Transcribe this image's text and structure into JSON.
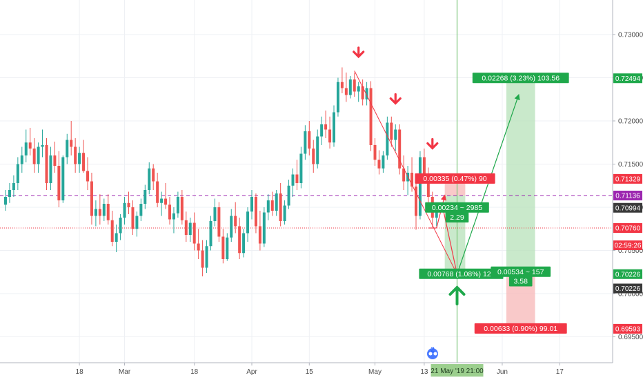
{
  "chart_data": {
    "type": "candlestick",
    "ylim": [
      0.692,
      0.734
    ],
    "price_ticks": [
      "0.73000",
      "0.72500",
      "0.72000",
      "0.71500",
      "0.71000",
      "0.70500",
      "0.70000",
      "0.69500"
    ],
    "x_ticks": [
      {
        "label": "18",
        "day": 18
      },
      {
        "label": "Mar",
        "day": 29
      },
      {
        "label": "18",
        "day": 46
      },
      {
        "label": "Apr",
        "day": 60
      },
      {
        "label": "15",
        "day": 74
      },
      {
        "label": "May",
        "day": 90
      },
      {
        "label": "13",
        "day": 102
      },
      {
        "label": "Jun",
        "day": 121
      },
      {
        "label": "17",
        "day": 135
      }
    ],
    "cursor_date_label": "21 May '19   21:00",
    "cursor_day": 110,
    "watermark_text": "2",
    "price_tags": [
      {
        "text": "0.72494",
        "price": 0.72494,
        "color": "#1fa84b"
      },
      {
        "text": "0.71329",
        "price": 0.71329,
        "color": "#f23645"
      },
      {
        "text": "0.71136",
        "price": 0.71136,
        "color": "#9c27b0"
      },
      {
        "text": "0.70994",
        "price": 0.70994,
        "color": "#3a3a3a"
      },
      {
        "text": "0.70760",
        "price": 0.7076,
        "color": "#f23645"
      },
      {
        "text": "02:59:26",
        "price": 0.7056,
        "color": "#f23645"
      },
      {
        "text": "0.70226",
        "price": 0.70226,
        "color": "#1fa84b"
      },
      {
        "text": "0.70226",
        "price": 0.7006,
        "color": "#3a3a3a"
      },
      {
        "text": "0.69593",
        "price": 0.69593,
        "color": "#f23645"
      }
    ],
    "horizontal_lines": [
      {
        "price": 0.71136,
        "color": "#9c27b0",
        "style": "dashed"
      },
      {
        "price": 0.7076,
        "color": "#f23645",
        "style": "dotted"
      }
    ],
    "candles": [
      [
        0,
        0.7103,
        0.712,
        0.7096,
        0.7112
      ],
      [
        1,
        0.7112,
        0.7128,
        0.7105,
        0.712
      ],
      [
        2,
        0.712,
        0.7137,
        0.7112,
        0.7128
      ],
      [
        3,
        0.7128,
        0.7158,
        0.712,
        0.715
      ],
      [
        4,
        0.715,
        0.717,
        0.714,
        0.716
      ],
      [
        5,
        0.716,
        0.719,
        0.7152,
        0.7175
      ],
      [
        6,
        0.7175,
        0.7192,
        0.716,
        0.7168
      ],
      [
        7,
        0.7168,
        0.718,
        0.714,
        0.715
      ],
      [
        8,
        0.715,
        0.7175,
        0.714,
        0.717
      ],
      [
        9,
        0.717,
        0.719,
        0.7158,
        0.7172
      ],
      [
        10,
        0.7172,
        0.718,
        0.712,
        0.7128
      ],
      [
        11,
        0.7128,
        0.717,
        0.712,
        0.716
      ],
      [
        12,
        0.716,
        0.7176,
        0.714,
        0.7148
      ],
      [
        13,
        0.7148,
        0.7165,
        0.71,
        0.7108
      ],
      [
        14,
        0.7108,
        0.716,
        0.7105,
        0.7158
      ],
      [
        15,
        0.7158,
        0.7185,
        0.715,
        0.7178
      ],
      [
        16,
        0.7178,
        0.72,
        0.716,
        0.717
      ],
      [
        17,
        0.717,
        0.718,
        0.714,
        0.715
      ],
      [
        18,
        0.715,
        0.717,
        0.714,
        0.7163
      ],
      [
        19,
        0.7163,
        0.7178,
        0.714,
        0.7142
      ],
      [
        20,
        0.7142,
        0.7158,
        0.712,
        0.713
      ],
      [
        21,
        0.713,
        0.714,
        0.708,
        0.709
      ],
      [
        22,
        0.709,
        0.7108,
        0.7078,
        0.7098
      ],
      [
        23,
        0.7098,
        0.7115,
        0.708,
        0.709
      ],
      [
        24,
        0.709,
        0.711,
        0.7084,
        0.7104
      ],
      [
        25,
        0.7104,
        0.7115,
        0.708,
        0.7085
      ],
      [
        26,
        0.7085,
        0.7096,
        0.7055,
        0.706
      ],
      [
        27,
        0.706,
        0.708,
        0.7048,
        0.707
      ],
      [
        28,
        0.707,
        0.7092,
        0.7062,
        0.7088
      ],
      [
        29,
        0.7088,
        0.7112,
        0.708,
        0.7105
      ],
      [
        30,
        0.7105,
        0.7118,
        0.7092,
        0.71
      ],
      [
        31,
        0.71,
        0.7108,
        0.7068,
        0.7075
      ],
      [
        32,
        0.7075,
        0.7095,
        0.7066,
        0.709
      ],
      [
        33,
        0.709,
        0.711,
        0.7084,
        0.7104
      ],
      [
        34,
        0.7104,
        0.7126,
        0.7098,
        0.712
      ],
      [
        35,
        0.712,
        0.7152,
        0.7115,
        0.7145
      ],
      [
        36,
        0.7145,
        0.715,
        0.712,
        0.713
      ],
      [
        37,
        0.713,
        0.714,
        0.71,
        0.7105
      ],
      [
        38,
        0.7105,
        0.7118,
        0.709,
        0.711
      ],
      [
        39,
        0.711,
        0.7128,
        0.7098,
        0.7103
      ],
      [
        40,
        0.7103,
        0.7112,
        0.708,
        0.7086
      ],
      [
        41,
        0.7086,
        0.71,
        0.707,
        0.7093
      ],
      [
        42,
        0.7093,
        0.7118,
        0.7088,
        0.7112
      ],
      [
        43,
        0.7112,
        0.712,
        0.708,
        0.7085
      ],
      [
        44,
        0.7085,
        0.7095,
        0.706,
        0.7068
      ],
      [
        45,
        0.7068,
        0.7088,
        0.706,
        0.7082
      ],
      [
        46,
        0.7082,
        0.7094,
        0.705,
        0.7058
      ],
      [
        47,
        0.7058,
        0.7075,
        0.704,
        0.705
      ],
      [
        48,
        0.705,
        0.7062,
        0.702,
        0.703
      ],
      [
        49,
        0.703,
        0.7062,
        0.7024,
        0.7055
      ],
      [
        50,
        0.7055,
        0.709,
        0.705,
        0.7084
      ],
      [
        51,
        0.7084,
        0.711,
        0.7078,
        0.71
      ],
      [
        52,
        0.71,
        0.7106,
        0.706,
        0.7066
      ],
      [
        53,
        0.7066,
        0.7075,
        0.7035,
        0.704
      ],
      [
        54,
        0.704,
        0.707,
        0.7038,
        0.7065
      ],
      [
        55,
        0.7065,
        0.7098,
        0.706,
        0.709
      ],
      [
        56,
        0.709,
        0.7106,
        0.707,
        0.7078
      ],
      [
        57,
        0.7078,
        0.7088,
        0.704,
        0.7047
      ],
      [
        58,
        0.7047,
        0.7075,
        0.7042,
        0.707
      ],
      [
        59,
        0.707,
        0.71,
        0.706,
        0.7095
      ],
      [
        60,
        0.7095,
        0.712,
        0.7086,
        0.7112
      ],
      [
        61,
        0.7112,
        0.7116,
        0.707,
        0.7078
      ],
      [
        62,
        0.7078,
        0.7096,
        0.705,
        0.7058
      ],
      [
        63,
        0.7058,
        0.71,
        0.7054,
        0.7094
      ],
      [
        64,
        0.7094,
        0.7115,
        0.7085,
        0.7108
      ],
      [
        65,
        0.7108,
        0.7118,
        0.709,
        0.7096
      ],
      [
        66,
        0.7096,
        0.712,
        0.709,
        0.7116
      ],
      [
        67,
        0.7116,
        0.7128,
        0.7078,
        0.7084
      ],
      [
        68,
        0.7084,
        0.7108,
        0.708,
        0.7102
      ],
      [
        69,
        0.7102,
        0.7132,
        0.7098,
        0.7125
      ],
      [
        70,
        0.7125,
        0.7145,
        0.7112,
        0.7138
      ],
      [
        71,
        0.7138,
        0.7155,
        0.712,
        0.7128
      ],
      [
        72,
        0.7128,
        0.717,
        0.7122,
        0.7162
      ],
      [
        73,
        0.7162,
        0.7195,
        0.7155,
        0.7188
      ],
      [
        74,
        0.7188,
        0.72,
        0.716,
        0.7168
      ],
      [
        75,
        0.7168,
        0.7178,
        0.714,
        0.715
      ],
      [
        76,
        0.715,
        0.719,
        0.7145,
        0.7182
      ],
      [
        77,
        0.7182,
        0.7205,
        0.7172,
        0.7196
      ],
      [
        78,
        0.7196,
        0.7212,
        0.718,
        0.719
      ],
      [
        79,
        0.719,
        0.7205,
        0.7168,
        0.7175
      ],
      [
        80,
        0.7175,
        0.7218,
        0.717,
        0.721
      ],
      [
        81,
        0.721,
        0.725,
        0.7205,
        0.7245
      ],
      [
        82,
        0.7245,
        0.7262,
        0.7232,
        0.7238
      ],
      [
        83,
        0.7238,
        0.7256,
        0.7222,
        0.723
      ],
      [
        84,
        0.723,
        0.7252,
        0.7226,
        0.7248
      ],
      [
        85,
        0.7248,
        0.7256,
        0.7228,
        0.7234
      ],
      [
        86,
        0.7234,
        0.7245,
        0.7222,
        0.724
      ],
      [
        87,
        0.724,
        0.7248,
        0.7218,
        0.7225
      ],
      [
        88,
        0.7225,
        0.7245,
        0.7218,
        0.7238
      ],
      [
        89,
        0.7238,
        0.7246,
        0.7165,
        0.7172
      ],
      [
        90,
        0.7172,
        0.718,
        0.7148,
        0.7155
      ],
      [
        91,
        0.7155,
        0.7166,
        0.7138,
        0.7145
      ],
      [
        92,
        0.7145,
        0.7165,
        0.714,
        0.716
      ],
      [
        93,
        0.716,
        0.7205,
        0.7155,
        0.7198
      ],
      [
        94,
        0.7198,
        0.7205,
        0.717,
        0.7178
      ],
      [
        95,
        0.7178,
        0.7196,
        0.7165,
        0.719
      ],
      [
        96,
        0.719,
        0.7196,
        0.7138,
        0.7145
      ],
      [
        97,
        0.7145,
        0.716,
        0.712,
        0.713
      ],
      [
        98,
        0.713,
        0.7148,
        0.7114,
        0.714
      ],
      [
        99,
        0.714,
        0.7158,
        0.7118,
        0.7124
      ],
      [
        100,
        0.7124,
        0.7132,
        0.7074,
        0.709
      ],
      [
        101,
        0.709,
        0.7165,
        0.7086,
        0.7158
      ],
      [
        102,
        0.7158,
        0.7168,
        0.713,
        0.7138
      ],
      [
        103,
        0.7138,
        0.7146,
        0.7105,
        0.7112
      ],
      [
        104,
        0.7112,
        0.7118,
        0.7077,
        0.7088
      ],
      [
        105,
        0.7088,
        0.7102,
        0.7078,
        0.7099
      ]
    ],
    "trendline": {
      "p1": [
        85,
        0.7258
      ],
      "p2": [
        110,
        0.70226
      ],
      "color": "#f23645"
    },
    "signal_arrows": [
      {
        "day": 86,
        "price": 0.7272,
        "color": "#f23645",
        "direction": "down"
      },
      {
        "day": 95,
        "price": 0.7218,
        "color": "#f23645",
        "direction": "down"
      },
      {
        "day": 104,
        "price": 0.7166,
        "color": "#f23645",
        "direction": "down"
      }
    ],
    "path_red": [
      [
        105,
        0.7076
      ],
      [
        107,
        0.71136
      ],
      [
        110,
        0.70226
      ]
    ],
    "path_red_lower": [
      [
        103,
        0.7076
      ],
      [
        105,
        0.7076
      ]
    ],
    "path_green": [
      [
        110,
        0.70226
      ],
      [
        125,
        0.723
      ]
    ],
    "up_arrow": {
      "day": 110,
      "price": 0.6996,
      "color": "#1fa84b"
    },
    "positions": [
      {
        "x1": 107,
        "x2": 112,
        "entry": 0.70994,
        "target": 0.71136,
        "stop": 0.70226,
        "stop_top": 0.71329,
        "profit_bottom": 0.70226,
        "profit_top": 0.71329,
        "loss_top": 0.71329,
        "loss_bottom": 0.71136
      },
      {
        "x1": 122,
        "x2": 129,
        "entry": 0.70226,
        "profit_top": 0.72494,
        "stop_bottom": 0.69593
      }
    ],
    "annotations": [
      {
        "text": "0.02268 (3.23%) 103.56",
        "day": 125.5,
        "price": 0.72494,
        "color": "#1fa84b",
        "anchor": "middle"
      },
      {
        "text": "0.00335 (0.47%) 90",
        "day": 109.5,
        "price": 0.71329,
        "color": "#f23645",
        "anchor": "middle"
      },
      {
        "text": "0.00234 ~ 2985",
        "day": 110,
        "price": 0.70994,
        "color": "#1fa84b",
        "anchor": "middle"
      },
      {
        "text": "2.29",
        "day": 110,
        "price": 0.7088,
        "color": "#1fa84b",
        "anchor": "middle"
      },
      {
        "text": "0.00768 (1.08%) 122",
        "day": 111,
        "price": 0.70226,
        "color": "#1fa84b",
        "anchor": "middle"
      },
      {
        "text": "0.00534 ~ 157",
        "day": 125.5,
        "price": 0.7025,
        "color": "#1fa84b",
        "anchor": "middle"
      },
      {
        "text": "3.58",
        "day": 125.5,
        "price": 0.7014,
        "color": "#1fa84b",
        "anchor": "middle"
      },
      {
        "text": "0.00633 (0.90%) 99.01",
        "day": 125.5,
        "price": 0.69593,
        "color": "#f23645",
        "anchor": "middle"
      }
    ]
  }
}
